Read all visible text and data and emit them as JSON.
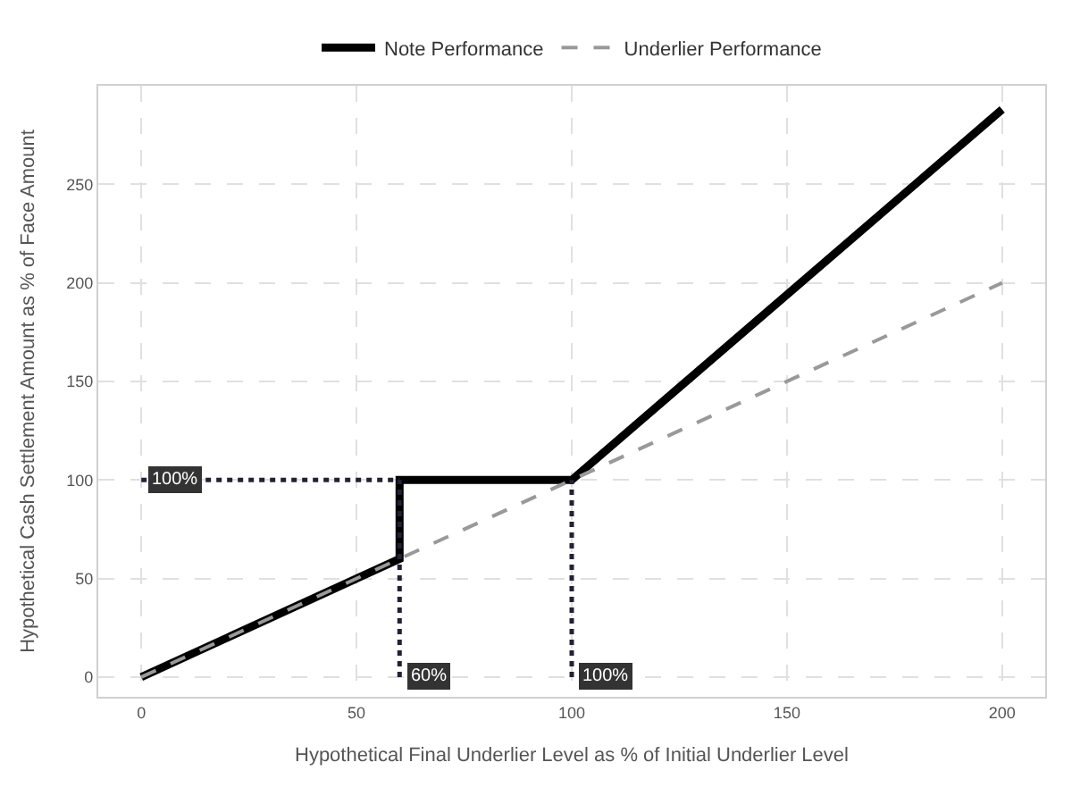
{
  "chart_data": {
    "type": "line",
    "xlabel": "Hypothetical Final Underlier Level as % of Initial Underlier Level",
    "ylabel": "Hypothetical Cash Settlement Amount as % of Face Amount",
    "series": [
      {
        "name": "Note Performance",
        "color": "#000000",
        "line_style": "solid",
        "x": [
          0,
          60,
          60,
          100,
          200
        ],
        "values": [
          0,
          60,
          100,
          100,
          288
        ]
      },
      {
        "name": "Underlier Performance",
        "color": "#999999",
        "line_style": "dashed",
        "x": [
          0,
          200
        ],
        "values": [
          0,
          200
        ]
      },
      {
        "color": "#222233",
        "line_style": "dotted",
        "x": [
          0,
          60
        ],
        "values": [
          100,
          100
        ]
      },
      {
        "color": "#222233",
        "line_style": "dotted",
        "x": [
          60,
          60
        ],
        "values": [
          0,
          100
        ]
      },
      {
        "color": "#222233",
        "line_style": "dotted",
        "x": [
          100,
          100
        ],
        "values": [
          0,
          100
        ]
      }
    ],
    "annotations": [
      {
        "text": "100%",
        "x": 0,
        "y": 100
      },
      {
        "text": "60%",
        "x": 60,
        "y": 0
      },
      {
        "text": "100%",
        "x": 100,
        "y": 0
      }
    ],
    "xlim": [
      -10,
      210
    ],
    "xticks": [
      0,
      50,
      100,
      150,
      200
    ],
    "ylim": [
      -10,
      300
    ],
    "yticks": [
      0,
      50,
      100,
      150,
      200,
      250
    ],
    "grid": true,
    "legend": "top"
  }
}
